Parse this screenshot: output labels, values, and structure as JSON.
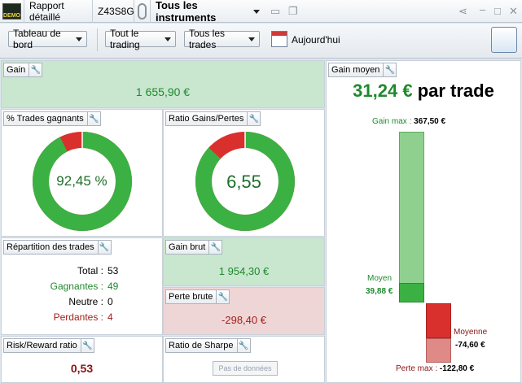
{
  "titlebar": {
    "demo_label": "DEMO",
    "report_label": "Rapport détaillé",
    "account_id": "Z43S8G",
    "instruments": "Tous les instruments"
  },
  "toolbar": {
    "dashboard": "Tableau de bord",
    "trading": "Tout le trading",
    "trades": "Tous les trades",
    "period": "Aujourd'hui"
  },
  "gain": {
    "label": "Gain",
    "value": "1 655,90 €"
  },
  "win_pct": {
    "label": "% Trades gagnants",
    "value": "92,45 %",
    "fraction": 0.9245
  },
  "ratio": {
    "label": "Ratio Gains/Pertes",
    "value": "6,55",
    "fraction": 0.8675
  },
  "repartition": {
    "label": "Répartition des trades",
    "rows": [
      {
        "label": "Total :",
        "value": "53"
      },
      {
        "label": "Gagnantes :",
        "value": "49"
      },
      {
        "label": "Neutre :",
        "value": "0"
      },
      {
        "label": "Perdantes :",
        "value": "4"
      }
    ]
  },
  "gain_brut": {
    "label": "Gain brut",
    "value": "1 954,30 €"
  },
  "perte_brute": {
    "label": "Perte brute",
    "value": "-298,40 €"
  },
  "risk_reward": {
    "label": "Risk/Reward ratio",
    "value": "0,53"
  },
  "sharpe": {
    "label": "Ratio de Sharpe",
    "button": "Pas de données"
  },
  "gain_moyen": {
    "label": "Gain moyen",
    "headline_value": "31,24 €",
    "headline_suffix": "par trade",
    "gain_max_label": "Gain max :",
    "gain_max_value": "367,50 €",
    "moyen_label": "Moyen",
    "moyen_value": "39,88 €",
    "moyenne_label": "Moyenne",
    "moyenne_value": "-74,60 €",
    "perte_max_label": "Perte max :",
    "perte_max_value": "-122,80 €"
  },
  "colors": {
    "green": "#3bb143",
    "red": "#d9302d",
    "panel_green": "#c9e6cf",
    "panel_blue": "#e3ebf3",
    "panel_red": "#efd6d6"
  }
}
